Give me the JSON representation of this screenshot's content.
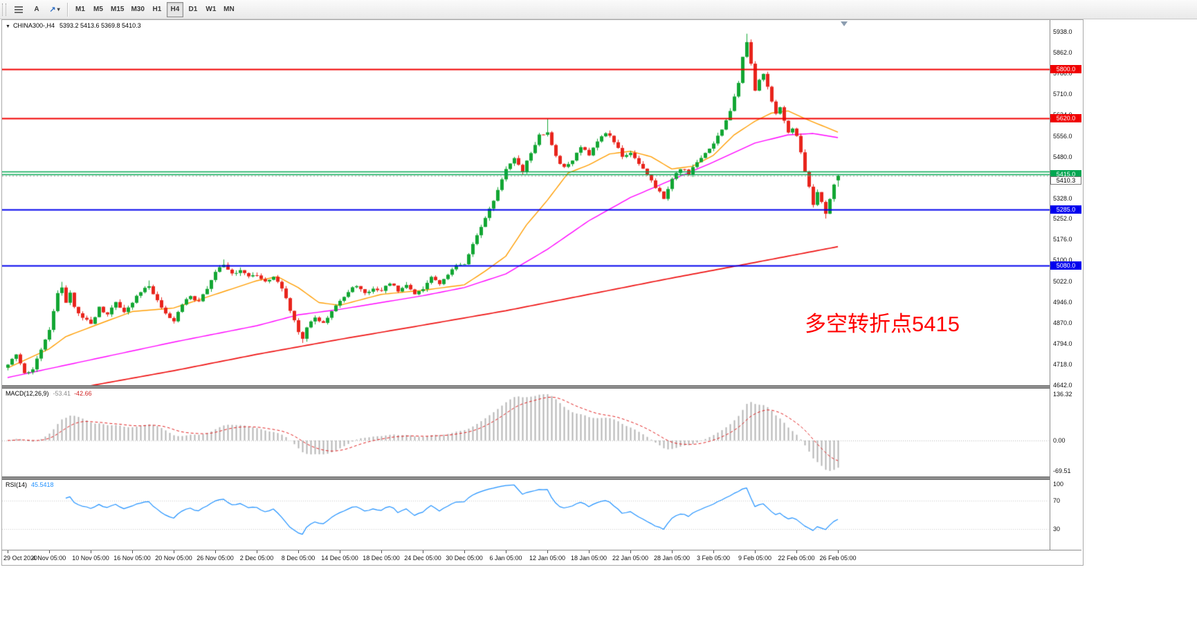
{
  "toolbar": {
    "text_tool_label": "A",
    "arrow_tool_glyph": "↗",
    "caret_glyph": "▾",
    "timeframes": [
      "M1",
      "M5",
      "M15",
      "M30",
      "H1",
      "H4",
      "D1",
      "W1",
      "MN"
    ],
    "active_timeframe": "H4"
  },
  "chart": {
    "symbol_tf": "CHINA300-,H4",
    "ohlc_text": "5393.2 5413.6 5369.8 5410.3",
    "dropdown_glyph": "▼"
  },
  "chart_data": {
    "type": "candlestick",
    "symbol": "CHINA300-",
    "timeframe": "H4",
    "candle_count": 201,
    "last_candle": [
      5393.2,
      5413.6,
      5369.8,
      5410.3
    ],
    "current_price": {
      "value": 5410.3,
      "label": "5410.3"
    },
    "y_ticks": [
      5938,
      5862,
      5786,
      5710,
      5634,
      5556,
      5480,
      5404,
      5328,
      5252,
      5176,
      5100,
      5022,
      4946,
      4870,
      4794,
      4718,
      4642
    ],
    "x_labels": [
      "29 Oct 2020",
      "4 Nov 05:00",
      "10 Nov 05:00",
      "16 Nov 05:00",
      "20 Nov 05:00",
      "26 Nov 05:00",
      "2 Dec 05:00",
      "8 Dec 05:00",
      "14 Dec 05:00",
      "18 Dec 05:00",
      "24 Dec 05:00",
      "30 Dec 05:00",
      "6 Jan 05:00",
      "12 Jan 05:00",
      "18 Jan 05:00",
      "22 Jan 05:00",
      "28 Jan 05:00",
      "3 Feb 05:00",
      "9 Feb 05:00",
      "22 Feb 05:00",
      "26 Feb 05:00"
    ],
    "hlines": [
      {
        "price": 5800.0,
        "color": "#f00000",
        "width": 2,
        "label": "5800.0"
      },
      {
        "price": 5620.0,
        "color": "#f00000",
        "width": 2,
        "label": "5620.0"
      },
      {
        "price": 5426.0,
        "color": "#00a651",
        "width": 1.5,
        "label": null
      },
      {
        "price": 5415.0,
        "color": "#00a651",
        "width": 1.5,
        "label": "5415.0"
      },
      {
        "price": 5285.0,
        "color": "#0000ee",
        "width": 2,
        "label": "5285.0"
      },
      {
        "price": 5080.0,
        "color": "#0000ee",
        "width": 2,
        "label": "5080.0"
      }
    ],
    "annotation": {
      "text": "多空转折点5415",
      "color": "#ff0000"
    },
    "close_keyframes": [
      [
        0,
        4720
      ],
      [
        2,
        4755
      ],
      [
        4,
        4685
      ],
      [
        6,
        4700
      ],
      [
        8,
        4775
      ],
      [
        10,
        4845
      ],
      [
        12,
        4975
      ],
      [
        13,
        5005
      ],
      [
        14,
        4940
      ],
      [
        15,
        4985
      ],
      [
        16,
        4925
      ],
      [
        18,
        4890
      ],
      [
        20,
        4868
      ],
      [
        22,
        4925
      ],
      [
        24,
        4900
      ],
      [
        26,
        4945
      ],
      [
        28,
        4908
      ],
      [
        30,
        4948
      ],
      [
        32,
        4982
      ],
      [
        34,
        5008
      ],
      [
        36,
        4952
      ],
      [
        38,
        4902
      ],
      [
        40,
        4878
      ],
      [
        42,
        4938
      ],
      [
        44,
        4968
      ],
      [
        46,
        4948
      ],
      [
        48,
        4998
      ],
      [
        50,
        5055
      ],
      [
        52,
        5088
      ],
      [
        54,
        5048
      ],
      [
        56,
        5068
      ],
      [
        58,
        5038
      ],
      [
        60,
        5048
      ],
      [
        62,
        5018
      ],
      [
        64,
        5038
      ],
      [
        66,
        4998
      ],
      [
        68,
        4918
      ],
      [
        70,
        4838
      ],
      [
        71,
        4812
      ],
      [
        72,
        4858
      ],
      [
        74,
        4888
      ],
      [
        76,
        4868
      ],
      [
        78,
        4918
      ],
      [
        80,
        4948
      ],
      [
        82,
        4988
      ],
      [
        84,
        5008
      ],
      [
        86,
        4978
      ],
      [
        88,
        4998
      ],
      [
        90,
        4988
      ],
      [
        92,
        5018
      ],
      [
        94,
        4988
      ],
      [
        96,
        5008
      ],
      [
        98,
        4978
      ],
      [
        100,
        4998
      ],
      [
        102,
        5038
      ],
      [
        104,
        5008
      ],
      [
        106,
        5048
      ],
      [
        108,
        5078
      ],
      [
        110,
        5088
      ],
      [
        112,
        5158
      ],
      [
        114,
        5218
      ],
      [
        116,
        5288
      ],
      [
        118,
        5358
      ],
      [
        120,
        5438
      ],
      [
        122,
        5478
      ],
      [
        124,
        5428
      ],
      [
        126,
        5498
      ],
      [
        128,
        5558
      ],
      [
        130,
        5568
      ],
      [
        132,
        5478
      ],
      [
        134,
        5438
      ],
      [
        136,
        5468
      ],
      [
        138,
        5518
      ],
      [
        140,
        5488
      ],
      [
        142,
        5538
      ],
      [
        144,
        5568
      ],
      [
        146,
        5538
      ],
      [
        148,
        5478
      ],
      [
        150,
        5498
      ],
      [
        152,
        5458
      ],
      [
        154,
        5418
      ],
      [
        156,
        5368
      ],
      [
        158,
        5328
      ],
      [
        160,
        5398
      ],
      [
        162,
        5438
      ],
      [
        164,
        5418
      ],
      [
        166,
        5458
      ],
      [
        168,
        5498
      ],
      [
        170,
        5528
      ],
      [
        172,
        5578
      ],
      [
        174,
        5648
      ],
      [
        176,
        5748
      ],
      [
        177,
        5848
      ],
      [
        178,
        5898
      ],
      [
        179,
        5818
      ],
      [
        180,
        5718
      ],
      [
        181,
        5758
      ],
      [
        182,
        5788
      ],
      [
        183,
        5738
      ],
      [
        184,
        5678
      ],
      [
        185,
        5638
      ],
      [
        186,
        5658
      ],
      [
        187,
        5608
      ],
      [
        188,
        5568
      ],
      [
        189,
        5588
      ],
      [
        190,
        5558
      ],
      [
        191,
        5498
      ],
      [
        192,
        5428
      ],
      [
        193,
        5368
      ],
      [
        194,
        5308
      ],
      [
        195,
        5348
      ],
      [
        196,
        5318
      ],
      [
        197,
        5268
      ],
      [
        198,
        5328
      ],
      [
        199,
        5378
      ],
      [
        200,
        5410.3
      ]
    ],
    "wick_overrides": [
      [
        13,
        "h",
        5021
      ],
      [
        34,
        "h",
        5026
      ],
      [
        52,
        "h",
        5103
      ],
      [
        71,
        "l",
        4797
      ],
      [
        130,
        "h",
        5619
      ],
      [
        178,
        "h",
        5931
      ],
      [
        197,
        "l",
        5253
      ]
    ],
    "moving_averages": [
      {
        "name": "ma-fast",
        "color": "#ff9d00",
        "width": 1.4,
        "keyframes": [
          [
            0,
            4705
          ],
          [
            10,
            4775
          ],
          [
            14,
            4820
          ],
          [
            20,
            4855
          ],
          [
            30,
            4912
          ],
          [
            40,
            4925
          ],
          [
            50,
            4975
          ],
          [
            60,
            5025
          ],
          [
            65,
            5040
          ],
          [
            70,
            5000
          ],
          [
            75,
            4945
          ],
          [
            80,
            4935
          ],
          [
            90,
            4975
          ],
          [
            100,
            4990
          ],
          [
            110,
            5010
          ],
          [
            115,
            5060
          ],
          [
            120,
            5115
          ],
          [
            125,
            5230
          ],
          [
            130,
            5320
          ],
          [
            135,
            5420
          ],
          [
            140,
            5450
          ],
          [
            145,
            5490
          ],
          [
            150,
            5500
          ],
          [
            155,
            5480
          ],
          [
            160,
            5435
          ],
          [
            165,
            5445
          ],
          [
            170,
            5485
          ],
          [
            175,
            5560
          ],
          [
            180,
            5610
          ],
          [
            184,
            5640
          ],
          [
            188,
            5648
          ],
          [
            192,
            5620
          ],
          [
            196,
            5595
          ],
          [
            200,
            5570
          ]
        ]
      },
      {
        "name": "ma-mid",
        "color": "#ff00ff",
        "width": 1.4,
        "keyframes": [
          [
            0,
            4670
          ],
          [
            20,
            4735
          ],
          [
            40,
            4800
          ],
          [
            60,
            4860
          ],
          [
            70,
            4900
          ],
          [
            80,
            4920
          ],
          [
            90,
            4945
          ],
          [
            100,
            4970
          ],
          [
            110,
            5000
          ],
          [
            120,
            5050
          ],
          [
            130,
            5140
          ],
          [
            140,
            5245
          ],
          [
            150,
            5330
          ],
          [
            160,
            5395
          ],
          [
            170,
            5460
          ],
          [
            180,
            5530
          ],
          [
            188,
            5560
          ],
          [
            194,
            5565
          ],
          [
            200,
            5550
          ]
        ]
      },
      {
        "name": "ma-slow",
        "color": "#ee1111",
        "width": 1.7,
        "keyframes": [
          [
            0,
            4598
          ],
          [
            20,
            4640
          ],
          [
            40,
            4695
          ],
          [
            60,
            4755
          ],
          [
            80,
            4810
          ],
          [
            100,
            4862
          ],
          [
            120,
            4915
          ],
          [
            140,
            4975
          ],
          [
            160,
            5035
          ],
          [
            180,
            5092
          ],
          [
            200,
            5150
          ]
        ]
      }
    ],
    "macd": {
      "name": "MACD(12,26,9)",
      "fast": 12,
      "slow": 26,
      "signal": 9,
      "value_main": "-53.41",
      "value_signal": "-42.66",
      "scale_max_label": "136.32",
      "scale_zero_label": "0.00",
      "scale_min_label": "-69.51"
    },
    "rsi": {
      "name": "RSI(14)",
      "period": 14,
      "value": "45.5418",
      "levels": [
        70,
        30
      ],
      "scale_labels": [
        "100",
        "70",
        "30"
      ]
    },
    "colors": {
      "up": "#12a633",
      "down": "#e8241c",
      "macd_bar": "#b4b4b4",
      "macd_signal": "#e02020",
      "rsi_line": "#1e90ff"
    }
  }
}
